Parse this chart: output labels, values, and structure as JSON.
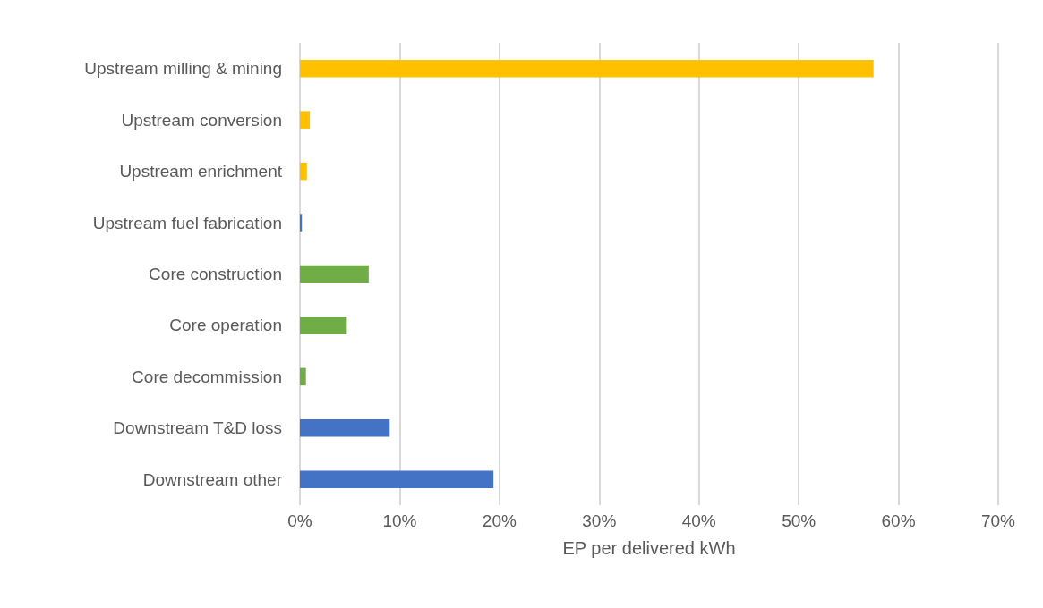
{
  "chart_data": {
    "type": "bar",
    "orientation": "horizontal",
    "xlabel": "EP per delivered kWh",
    "categories": [
      "Upstream milling & mining",
      "Upstream conversion",
      "Upstream enrichment",
      "Upstream fuel fabrication",
      "Core construction",
      "Core operation",
      "Core decommission",
      "Downstream T&D loss",
      "Downstream other"
    ],
    "values": [
      57.5,
      1.0,
      0.7,
      0.2,
      6.9,
      4.7,
      0.6,
      9.0,
      19.4
    ],
    "colors": [
      "#ffc000",
      "#ffc000",
      "#ffc000",
      "#4472c4",
      "#70ad47",
      "#70ad47",
      "#70ad47",
      "#4472c4",
      "#4472c4"
    ],
    "xlim": [
      0,
      70
    ],
    "xticks": [
      {
        "value": 0,
        "label": "0%"
      },
      {
        "value": 10,
        "label": "10%"
      },
      {
        "value": 20,
        "label": "20%"
      },
      {
        "value": 30,
        "label": "30%"
      },
      {
        "value": 40,
        "label": "40%"
      },
      {
        "value": 50,
        "label": "50%"
      },
      {
        "value": 60,
        "label": "60%"
      },
      {
        "value": 70,
        "label": "70%"
      }
    ],
    "grid": "x"
  }
}
